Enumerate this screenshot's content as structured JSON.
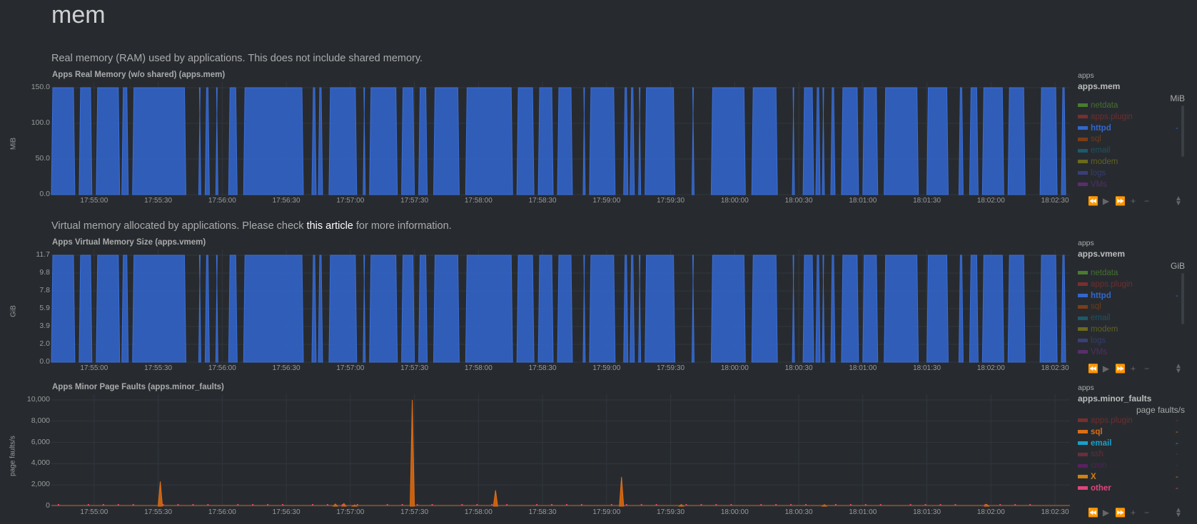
{
  "section_title": "mem",
  "charts": [
    {
      "id": "mem",
      "description_before": "Real memory (RAM) used by applications. This does not include shared memory.",
      "title": "Apps Real Memory (w/o shared) (apps.mem)",
      "ylabel": "MiB",
      "legend_family": "apps",
      "legend_context": "apps.mem",
      "legend_unit": "MiB",
      "yticks": [
        "150.0",
        "100.0",
        "50.0",
        "0.0"
      ],
      "legend": [
        {
          "name": "netdata",
          "color": "#4a7c2e",
          "dim": true,
          "value": ""
        },
        {
          "name": "apps.plugin",
          "color": "#7a2e2e",
          "dim": true,
          "value": ""
        },
        {
          "name": "httpd",
          "color": "#3366cc",
          "dim": false,
          "value": "-"
        },
        {
          "name": "sql",
          "color": "#7a3e18",
          "dim": true,
          "value": ""
        },
        {
          "name": "email",
          "color": "#1c5a6a",
          "dim": true,
          "value": ""
        },
        {
          "name": "modem",
          "color": "#6a6a1c",
          "dim": true,
          "value": ""
        },
        {
          "name": "logs",
          "color": "#3a3e7a",
          "dim": true,
          "value": ""
        },
        {
          "name": "VMs",
          "color": "#5a2e6a",
          "dim": true,
          "value": ""
        }
      ]
    },
    {
      "id": "vmem",
      "description_before": "Virtual memory allocated by applications. Please check ",
      "description_link": "this article",
      "description_after": " for more information.",
      "title": "Apps Virtual Memory Size (apps.vmem)",
      "ylabel": "GiB",
      "legend_family": "apps",
      "legend_context": "apps.vmem",
      "legend_unit": "GiB",
      "yticks": [
        "11.7",
        "9.8",
        "7.8",
        "5.9",
        "3.9",
        "2.0",
        "0.0"
      ],
      "legend": [
        {
          "name": "netdata",
          "color": "#4a7c2e",
          "dim": true,
          "value": ""
        },
        {
          "name": "apps.plugin",
          "color": "#7a2e2e",
          "dim": true,
          "value": ""
        },
        {
          "name": "httpd",
          "color": "#3366cc",
          "dim": false,
          "value": "-"
        },
        {
          "name": "sql",
          "color": "#7a3e18",
          "dim": true,
          "value": ""
        },
        {
          "name": "email",
          "color": "#1c5a6a",
          "dim": true,
          "value": ""
        },
        {
          "name": "modem",
          "color": "#6a6a1c",
          "dim": true,
          "value": ""
        },
        {
          "name": "logs",
          "color": "#3a3e7a",
          "dim": true,
          "value": ""
        },
        {
          "name": "VMs",
          "color": "#5a2e6a",
          "dim": true,
          "value": ""
        }
      ]
    },
    {
      "id": "minor_faults",
      "title": "Apps Minor Page Faults (apps.minor_faults)",
      "ylabel": "page faults/s",
      "legend_family": "apps",
      "legend_context": "apps.minor_faults",
      "legend_unit": "page faults/s",
      "yticks": [
        "10,000",
        "8,000",
        "6,000",
        "4,000",
        "2,000",
        "0"
      ],
      "legend": [
        {
          "name": "apps.plugin",
          "color": "#7a2e2e",
          "dim": true,
          "value": "-"
        },
        {
          "name": "sql",
          "color": "#dc6e14",
          "dim": false,
          "value": "-"
        },
        {
          "name": "email",
          "color": "#1a9fc9",
          "dim": false,
          "value": "-"
        },
        {
          "name": "ssh",
          "color": "#6a2e3a",
          "dim": true,
          "value": "-"
        },
        {
          "name": "cron",
          "color": "#5a2060",
          "dim": true,
          "value": "-"
        },
        {
          "name": "X",
          "color": "#d2800e",
          "dim": false,
          "value": "-"
        },
        {
          "name": "other",
          "color": "#e0457b",
          "dim": false,
          "value": "-"
        }
      ]
    }
  ],
  "xticks": [
    "17:55:00",
    "17:55:30",
    "17:56:00",
    "17:56:30",
    "17:57:00",
    "17:57:30",
    "17:58:00",
    "17:58:30",
    "17:59:00",
    "17:59:30",
    "18:00:00",
    "18:00:30",
    "18:01:00",
    "18:01:30",
    "18:02:00",
    "18:02:30"
  ],
  "toolbar_icons": [
    "rewind-icon",
    "play-icon",
    "fast-forward-icon",
    "zoom-in-icon",
    "zoom-out-icon"
  ],
  "chart_data": [
    {
      "type": "area",
      "title": "Apps Real Memory (w/o shared) (apps.mem)",
      "ylabel": "MiB",
      "ylim": [
        0,
        170
      ],
      "series": [
        {
          "name": "httpd",
          "color": "#3366cc",
          "value_when_on": 170
        }
      ],
      "on_intervals_seconds": [
        [
          0,
          11
        ],
        [
          13,
          19
        ],
        [
          21,
          32
        ],
        [
          33,
          36
        ],
        [
          38,
          63
        ],
        [
          69,
          70
        ],
        [
          72,
          74
        ],
        [
          77,
          78
        ],
        [
          83,
          87
        ],
        [
          90,
          118
        ],
        [
          122,
          124
        ],
        [
          125,
          127
        ],
        [
          130,
          143
        ],
        [
          146,
          147
        ],
        [
          149,
          162
        ],
        [
          164,
          170
        ],
        [
          172,
          176
        ],
        [
          179,
          191
        ],
        [
          194,
          216
        ],
        [
          218,
          226
        ],
        [
          228,
          235
        ],
        [
          237,
          244
        ],
        [
          249,
          250
        ],
        [
          252,
          264
        ],
        [
          268,
          270
        ],
        [
          271,
          273
        ],
        [
          275,
          276
        ],
        [
          278,
          292
        ],
        [
          300,
          301
        ],
        [
          309,
          325
        ],
        [
          328,
          340
        ],
        [
          347,
          348
        ],
        [
          352,
          357
        ],
        [
          358,
          360
        ],
        [
          361,
          362
        ],
        [
          365,
          367
        ],
        [
          370,
          378
        ],
        [
          380,
          387
        ],
        [
          390,
          406
        ],
        [
          410,
          420
        ],
        [
          425,
          427
        ],
        [
          430,
          434
        ],
        [
          436,
          446
        ],
        [
          448,
          456
        ],
        [
          463,
          471
        ],
        [
          473,
          475
        ]
      ],
      "x_start": "17:54:40",
      "x_end": "18:02:37"
    },
    {
      "type": "area",
      "title": "Apps Virtual Memory Size (apps.vmem)",
      "ylabel": "GiB",
      "ylim": [
        0,
        11.7
      ],
      "series": [
        {
          "name": "httpd",
          "color": "#3366cc",
          "value_when_on": 11.7
        }
      ],
      "on_intervals_seconds": "same as apps.mem",
      "x_start": "17:54:40",
      "x_end": "18:02:37"
    },
    {
      "type": "area",
      "title": "Apps Minor Page Faults (apps.minor_faults)",
      "ylabel": "page faults/s",
      "ylim": [
        0,
        12000
      ],
      "series": [
        {
          "name": "sql",
          "color": "#dc6e14",
          "points": [
            [
              50,
              0
            ],
            [
              51,
              2800
            ],
            [
              52,
              0
            ],
            [
              168,
              0
            ],
            [
              169,
              12000
            ],
            [
              170,
              0
            ],
            [
              207,
              0
            ],
            [
              208,
              1800
            ],
            [
              209,
              0
            ],
            [
              266,
              0
            ],
            [
              267,
              3300
            ],
            [
              268,
              0
            ],
            [
              136,
              0
            ],
            [
              137,
              300
            ],
            [
              138,
              0
            ]
          ]
        },
        {
          "name": "other",
          "color": "#e0457b",
          "points": []
        }
      ],
      "x_start": "17:54:40",
      "x_end": "18:02:37"
    }
  ]
}
